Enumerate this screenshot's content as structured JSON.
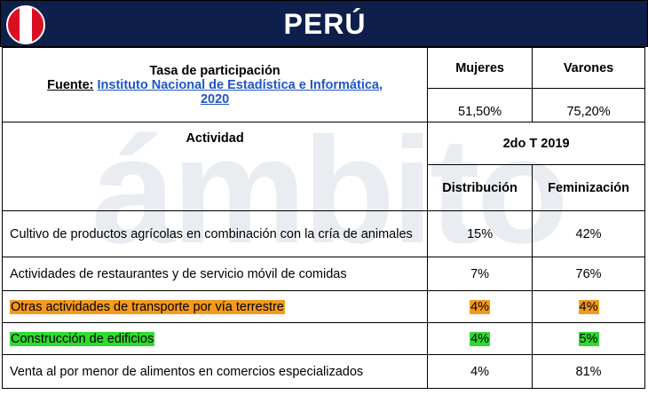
{
  "header": {
    "country": "PERÚ",
    "flag_icon": "peru-flag-icon",
    "colors": {
      "bar": "#0d1f4a",
      "flag_red": "#d91023"
    }
  },
  "watermark": "ámbito",
  "participation": {
    "title": "Tasa de participación",
    "source_label": "Fuente:",
    "source_link": "Instituto Nacional de Estadística e Informática,",
    "source_year": "2020",
    "women_label": "Mujeres",
    "men_label": "Varones",
    "women_value": "51,50%",
    "men_value": "75,20%"
  },
  "activity_header": {
    "activity_label": "Actividad",
    "period_label": "2do T 2019",
    "distribution_label": "Distribución",
    "feminization_label": "Feminización"
  },
  "rows": [
    {
      "activity": "Cultivo de productos agrícolas en combinación con la cría de animales",
      "distribution": "15%",
      "feminization": "42%",
      "highlight": ""
    },
    {
      "activity": "Actividades de restaurantes y de servicio móvil de comidas",
      "distribution": "7%",
      "feminization": "76%",
      "highlight": ""
    },
    {
      "activity": "Otras actividades de transporte por vía terrestre",
      "distribution": "4%",
      "feminization": "4%",
      "highlight": "#f39a1e"
    },
    {
      "activity": "Construcción de edificios",
      "distribution": "4%",
      "feminization": "5%",
      "highlight": "#2fdb2f"
    },
    {
      "activity": "Venta al por menor de alimentos en comercios especializados",
      "distribution": "4%",
      "feminization": "81%",
      "highlight": ""
    }
  ]
}
